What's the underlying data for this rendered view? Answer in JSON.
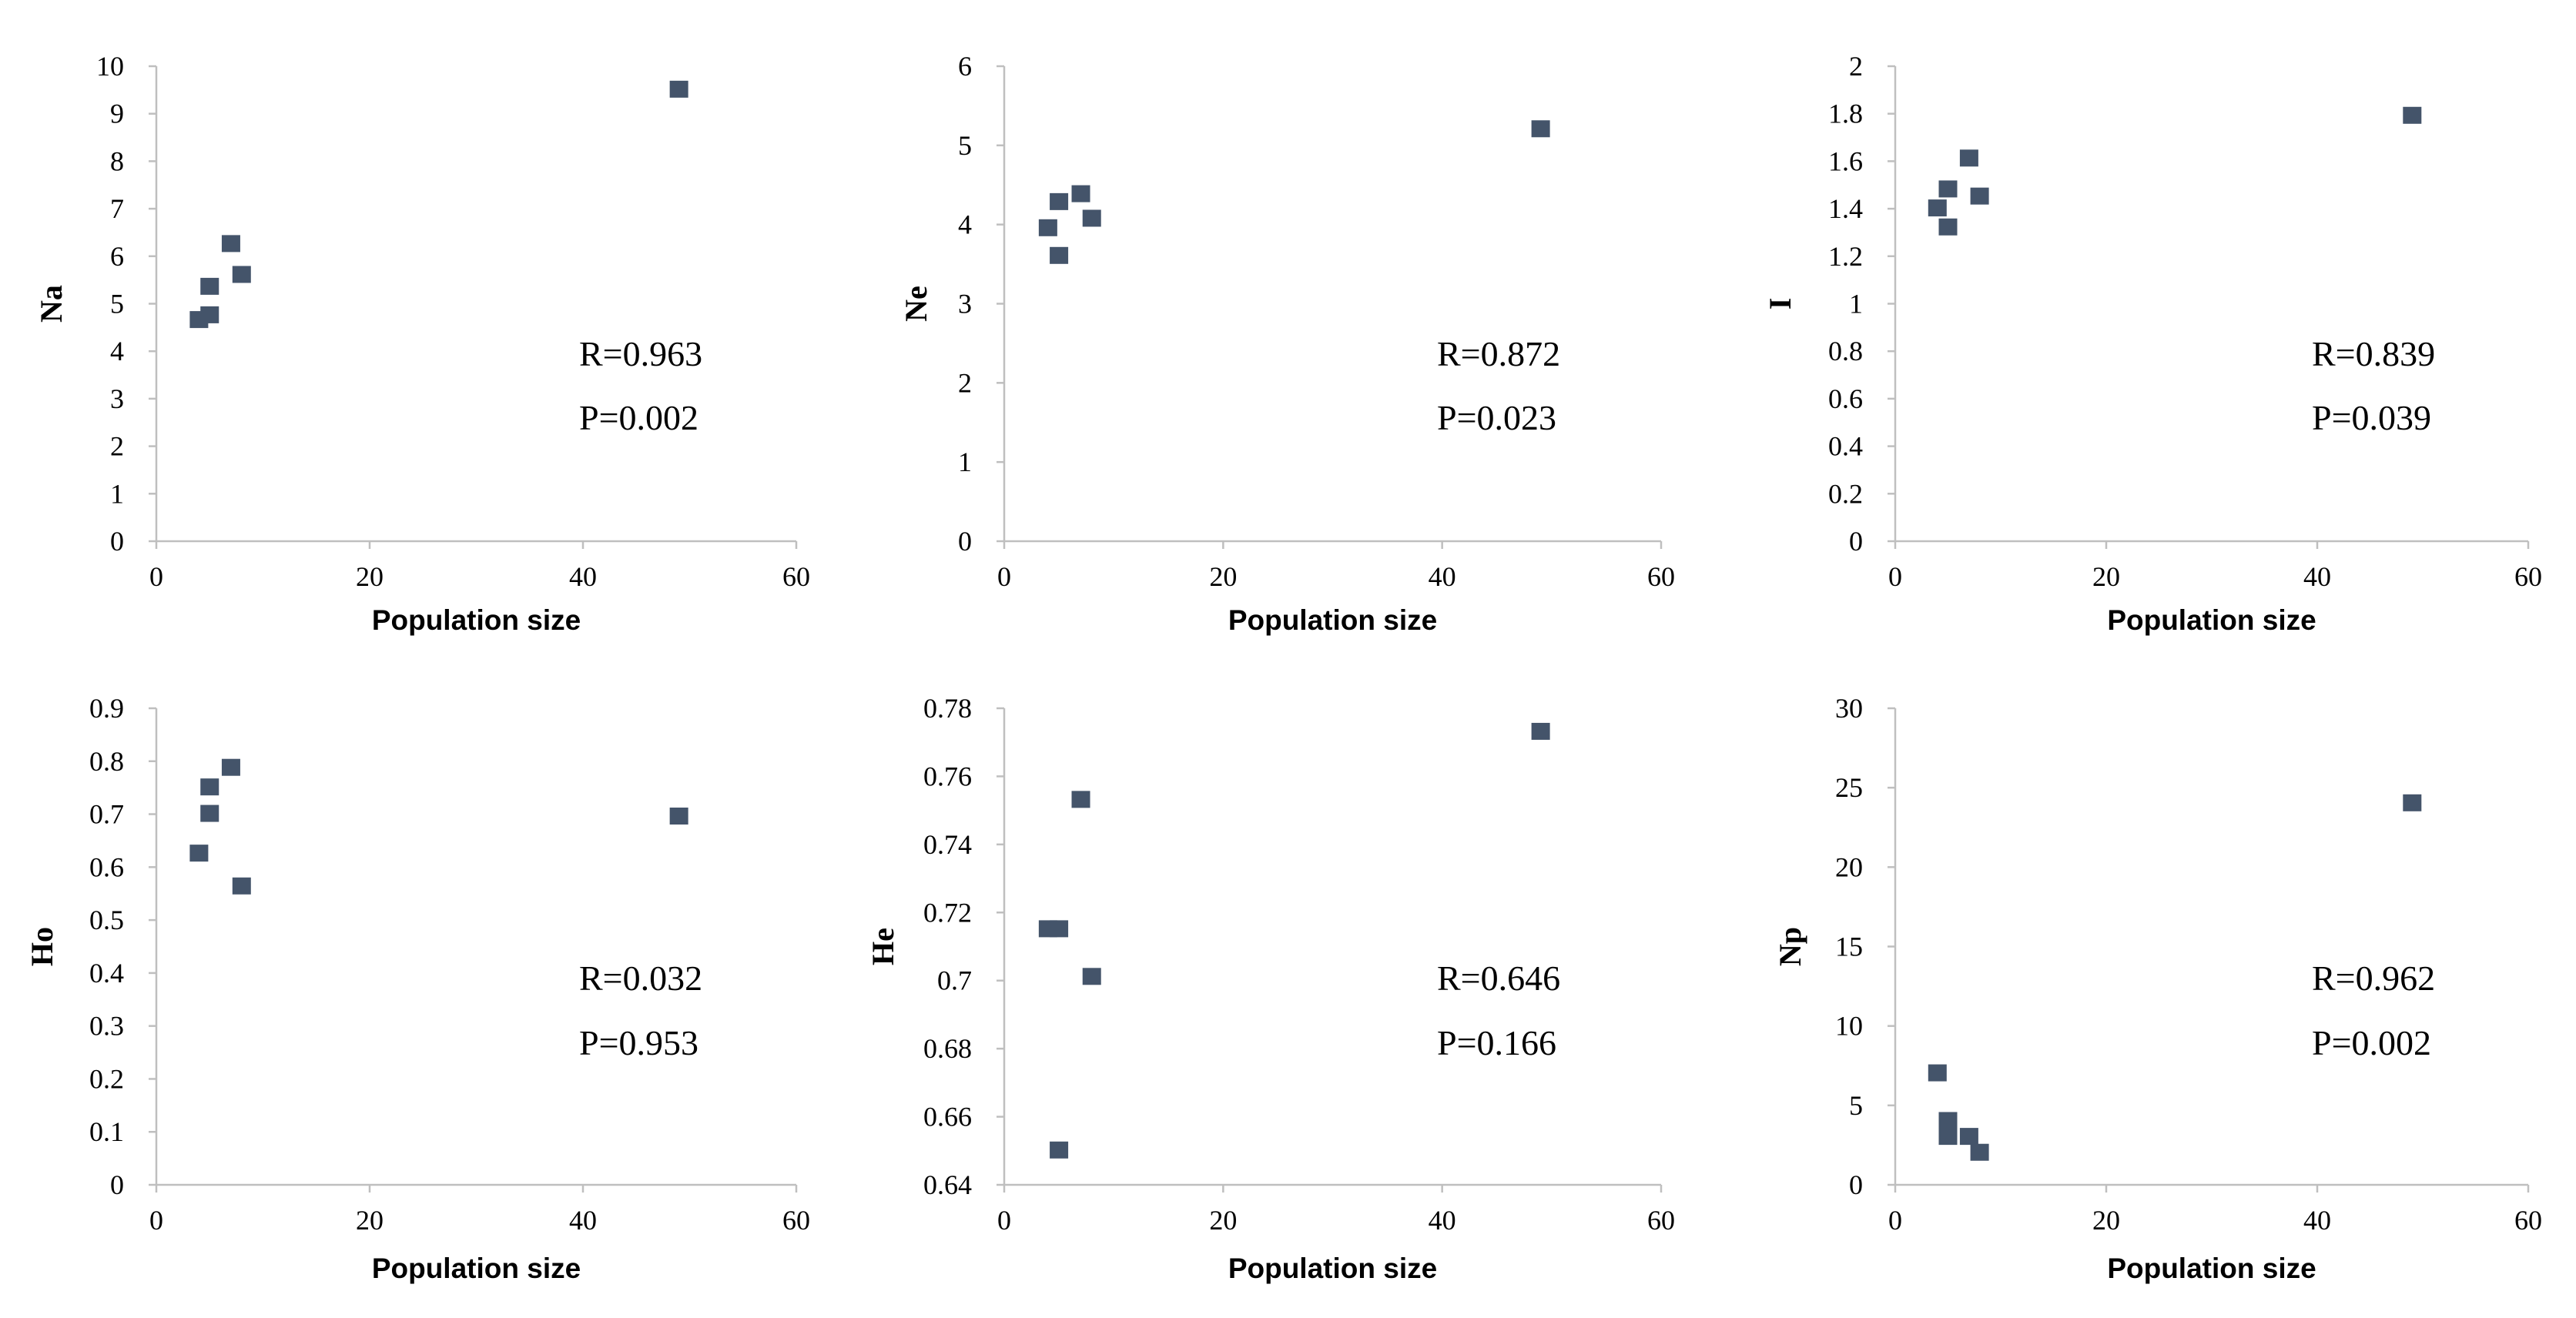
{
  "marker_color": "#44546a",
  "axis_color": "#bfbfbf",
  "chart_data": [
    {
      "type": "scatter",
      "title": "",
      "xlabel": "Population size",
      "ylabel": "Na",
      "xlim": [
        0,
        60
      ],
      "xticks": [
        0,
        20,
        40,
        60
      ],
      "ylim": [
        0,
        10
      ],
      "yticks": [
        0,
        1,
        2,
        3,
        4,
        5,
        6,
        7,
        8,
        9,
        10
      ],
      "points": [
        {
          "x": 4,
          "y": 4.65
        },
        {
          "x": 5,
          "y": 4.75
        },
        {
          "x": 5,
          "y": 5.35
        },
        {
          "x": 7,
          "y": 6.25
        },
        {
          "x": 8,
          "y": 5.6
        },
        {
          "x": 49,
          "y": 9.5
        }
      ],
      "annotations": [
        "R=0.963",
        "P=0.002"
      ]
    },
    {
      "type": "scatter",
      "title": "",
      "xlabel": "Population size",
      "ylabel": "Ne",
      "xlim": [
        0,
        60
      ],
      "xticks": [
        0,
        20,
        40,
        60
      ],
      "ylim": [
        0,
        6
      ],
      "yticks": [
        0,
        1,
        2,
        3,
        4,
        5,
        6
      ],
      "points": [
        {
          "x": 4,
          "y": 3.95
        },
        {
          "x": 5,
          "y": 3.6
        },
        {
          "x": 5,
          "y": 4.28
        },
        {
          "x": 7,
          "y": 4.38
        },
        {
          "x": 8,
          "y": 4.07
        },
        {
          "x": 49,
          "y": 5.2
        }
      ],
      "annotations": [
        "R=0.872",
        "P=0.023"
      ]
    },
    {
      "type": "scatter",
      "title": "",
      "xlabel": "Population size",
      "ylabel": "I",
      "xlim": [
        0,
        60
      ],
      "xticks": [
        0,
        20,
        40,
        60
      ],
      "ylim": [
        0,
        2
      ],
      "yticks": [
        "0",
        "0.2",
        "0.4",
        "0.6",
        "0.8",
        "1",
        "1.2",
        "1.4",
        "1.6",
        "1.8",
        "2"
      ],
      "points": [
        {
          "x": 4,
          "y": 1.4
        },
        {
          "x": 5,
          "y": 1.32
        },
        {
          "x": 5,
          "y": 1.48
        },
        {
          "x": 7,
          "y": 1.61
        },
        {
          "x": 8,
          "y": 1.45
        },
        {
          "x": 49,
          "y": 1.79
        }
      ],
      "annotations": [
        "R=0.839",
        "P=0.039"
      ]
    },
    {
      "type": "scatter",
      "title": "",
      "xlabel": "Population size",
      "ylabel": "Ho",
      "xlim": [
        0,
        60
      ],
      "xticks": [
        0,
        20,
        40,
        60
      ],
      "ylim": [
        0,
        0.9
      ],
      "yticks": [
        "0",
        "0.1",
        "0.2",
        "0.3",
        "0.4",
        "0.5",
        "0.6",
        "0.7",
        "0.8",
        "0.9"
      ],
      "points": [
        {
          "x": 4,
          "y": 0.625
        },
        {
          "x": 5,
          "y": 0.7
        },
        {
          "x": 5,
          "y": 0.75
        },
        {
          "x": 7,
          "y": 0.787
        },
        {
          "x": 8,
          "y": 0.563
        },
        {
          "x": 49,
          "y": 0.695
        }
      ],
      "annotations": [
        "R=0.032",
        "P=0.953"
      ]
    },
    {
      "type": "scatter",
      "title": "",
      "xlabel": "Population size",
      "ylabel": "He",
      "xlim": [
        0,
        60
      ],
      "xticks": [
        0,
        20,
        40,
        60
      ],
      "ylim": [
        0.64,
        0.78
      ],
      "yticks": [
        "0.64",
        "0.66",
        "0.68",
        "0.7",
        "0.72",
        "0.74",
        "0.76",
        "0.78"
      ],
      "points": [
        {
          "x": 4,
          "y": 0.715
        },
        {
          "x": 5,
          "y": 0.715
        },
        {
          "x": 5,
          "y": 0.65
        },
        {
          "x": 7,
          "y": 0.753
        },
        {
          "x": 8,
          "y": 0.701
        },
        {
          "x": 49,
          "y": 0.773
        }
      ],
      "annotations": [
        "R=0.646",
        "P=0.166"
      ]
    },
    {
      "type": "scatter",
      "title": "",
      "xlabel": "Population size",
      "ylabel": "Np",
      "xlim": [
        0,
        60
      ],
      "xticks": [
        0,
        20,
        40,
        60
      ],
      "ylim": [
        0,
        30
      ],
      "yticks": [
        0,
        5,
        10,
        15,
        20,
        25,
        30
      ],
      "points": [
        {
          "x": 4,
          "y": 7
        },
        {
          "x": 5,
          "y": 4
        },
        {
          "x": 5,
          "y": 3
        },
        {
          "x": 7,
          "y": 3
        },
        {
          "x": 8,
          "y": 2
        },
        {
          "x": 49,
          "y": 24
        }
      ],
      "annotations": [
        "R=0.962",
        "P=0.002"
      ]
    }
  ]
}
